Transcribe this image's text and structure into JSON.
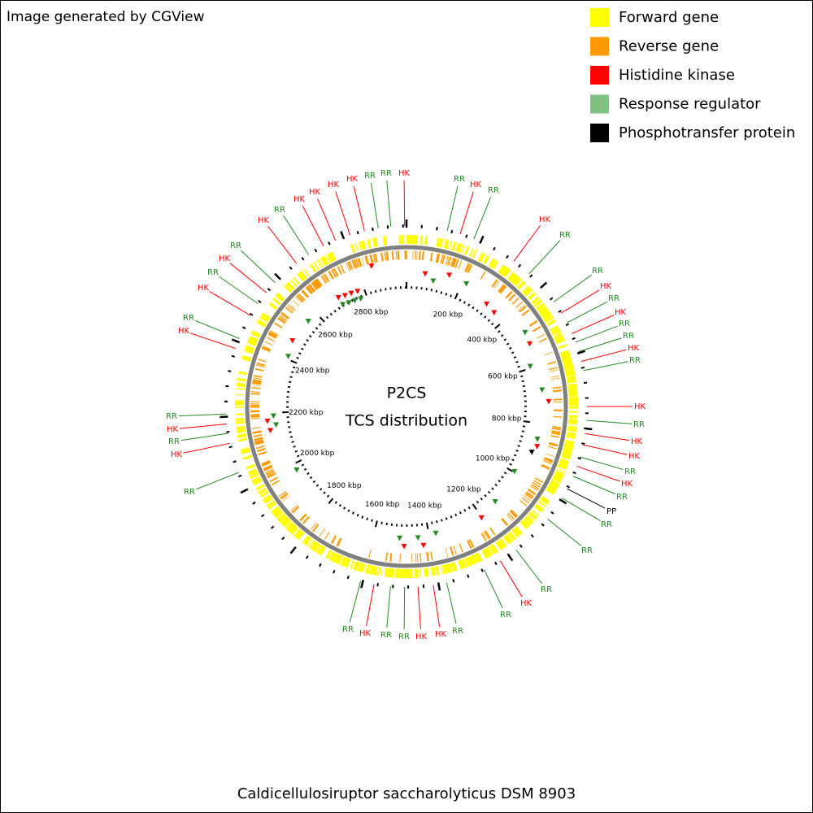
{
  "header": {
    "note": "Image generated by CGView"
  },
  "legend": [
    {
      "label": "Forward gene",
      "color": "#ffff00"
    },
    {
      "label": "Reverse gene",
      "color": "#ff9900"
    },
    {
      "label": "Histidine kinase",
      "color": "#ff0000"
    },
    {
      "label": "Response regulator",
      "color": "#80c080"
    },
    {
      "label": "Phosphotransfer protein",
      "color": "#000000"
    }
  ],
  "center": {
    "title": "P2CS",
    "subtitle": "TCS distribution"
  },
  "caption": "Caldicellulosiruptor saccharolyticus DSM 8903",
  "ruler": {
    "labels": [
      "200 kbp",
      "400 kbp",
      "600 kbp",
      "800 kbp",
      "1000 kbp",
      "1200 kbp",
      "1400 kbp",
      "1600 kbp",
      "1800 kbp",
      "2000 kbp",
      "2200 kbp",
      "2400 kbp",
      "2600 kbp",
      "2800 kbp"
    ]
  },
  "callouts": [
    {
      "label": "RR",
      "color": "#228b22"
    },
    {
      "label": "HK",
      "color": "#ff0000"
    },
    {
      "label": "RR",
      "color": "#228b22"
    },
    {
      "label": "HK",
      "color": "#ff0000"
    },
    {
      "label": "RR",
      "color": "#228b22"
    },
    {
      "label": "RR",
      "color": "#228b22"
    },
    {
      "label": "HK",
      "color": "#ff0000"
    },
    {
      "label": "RR",
      "color": "#228b22"
    },
    {
      "label": "HK",
      "color": "#ff0000"
    },
    {
      "label": "RR",
      "color": "#228b22"
    },
    {
      "label": "RR",
      "color": "#228b22"
    },
    {
      "label": "HK",
      "color": "#ff0000"
    },
    {
      "label": "RR",
      "color": "#228b22"
    },
    {
      "label": "HK",
      "color": "#ff0000"
    },
    {
      "label": "RR",
      "color": "#228b22"
    },
    {
      "label": "HK",
      "color": "#ff0000"
    },
    {
      "label": "HK",
      "color": "#ff0000"
    },
    {
      "label": "RR",
      "color": "#228b22"
    },
    {
      "label": "HK",
      "color": "#ff0000"
    },
    {
      "label": "RR",
      "color": "#228b22"
    },
    {
      "label": "PP",
      "color": "#000000"
    },
    {
      "label": "RR",
      "color": "#228b22"
    },
    {
      "label": "RR",
      "color": "#228b22"
    },
    {
      "label": "RR",
      "color": "#228b22"
    },
    {
      "label": "HK",
      "color": "#ff0000"
    },
    {
      "label": "RR",
      "color": "#228b22"
    },
    {
      "label": "RR",
      "color": "#228b22"
    },
    {
      "label": "HK",
      "color": "#ff0000"
    },
    {
      "label": "HK",
      "color": "#ff0000"
    },
    {
      "label": "RR",
      "color": "#228b22"
    },
    {
      "label": "RR",
      "color": "#228b22"
    },
    {
      "label": "HK",
      "color": "#ff0000"
    },
    {
      "label": "RR",
      "color": "#228b22"
    },
    {
      "label": "RR",
      "color": "#228b22"
    },
    {
      "label": "HK",
      "color": "#ff0000"
    },
    {
      "label": "RR",
      "color": "#228b22"
    },
    {
      "label": "HK",
      "color": "#ff0000"
    },
    {
      "label": "RR",
      "color": "#228b22"
    },
    {
      "label": "HK",
      "color": "#ff0000"
    },
    {
      "label": "RR",
      "color": "#228b22"
    },
    {
      "label": "HK",
      "color": "#ff0000"
    },
    {
      "label": "RR",
      "color": "#228b22"
    },
    {
      "label": "HK",
      "color": "#ff0000"
    },
    {
      "label": "RR",
      "color": "#228b22"
    },
    {
      "label": "HK",
      "color": "#ff0000"
    },
    {
      "label": "RR",
      "color": "#228b22"
    },
    {
      "label": "HK",
      "color": "#ff0000"
    },
    {
      "label": "HK",
      "color": "#ff0000"
    },
    {
      "label": "HK",
      "color": "#ff0000"
    },
    {
      "label": "HK",
      "color": "#ff0000"
    },
    {
      "label": "RR",
      "color": "#228b22"
    },
    {
      "label": "RR",
      "color": "#228b22"
    },
    {
      "label": "HK",
      "color": "#ff0000"
    }
  ]
}
